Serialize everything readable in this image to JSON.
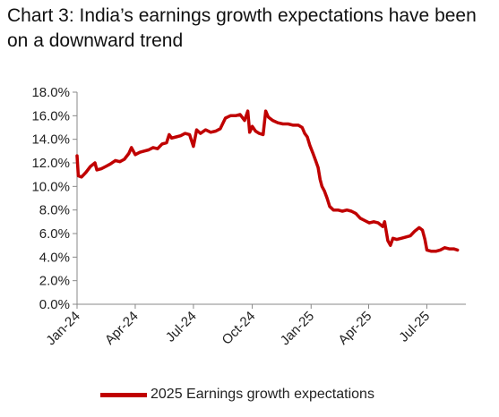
{
  "chart_data": {
    "type": "line",
    "title": "Chart 3: India’s earnings growth expectations have been on a downward trend",
    "xlabel": "",
    "ylabel": "",
    "ylim": [
      0,
      18
    ],
    "yticks": [
      "0.0%",
      "2.0%",
      "4.0%",
      "6.0%",
      "8.0%",
      "10.0%",
      "12.0%",
      "14.0%",
      "16.0%",
      "18.0%"
    ],
    "xticks": [
      "Jan-24",
      "Apr-24",
      "Jul-24",
      "Oct-24",
      "Jan-25",
      "Apr-25",
      "Jul-25"
    ],
    "grid": false,
    "legend_position": "bottom",
    "series": [
      {
        "name": "2025 Earnings growth expectations",
        "color": "#c00000",
        "points": [
          [
            "2024-01-01",
            12.6
          ],
          [
            "2024-01-03",
            10.9
          ],
          [
            "2024-01-08",
            10.8
          ],
          [
            "2024-01-15",
            11.2
          ],
          [
            "2024-01-22",
            11.7
          ],
          [
            "2024-01-29",
            12.0
          ],
          [
            "2024-02-01",
            11.4
          ],
          [
            "2024-02-08",
            11.5
          ],
          [
            "2024-02-15",
            11.7
          ],
          [
            "2024-02-22",
            11.9
          ],
          [
            "2024-03-01",
            12.2
          ],
          [
            "2024-03-08",
            12.1
          ],
          [
            "2024-03-15",
            12.3
          ],
          [
            "2024-03-22",
            12.8
          ],
          [
            "2024-03-26",
            13.3
          ],
          [
            "2024-04-01",
            12.7
          ],
          [
            "2024-04-08",
            12.9
          ],
          [
            "2024-04-15",
            13.0
          ],
          [
            "2024-04-22",
            13.1
          ],
          [
            "2024-04-29",
            13.3
          ],
          [
            "2024-05-06",
            13.2
          ],
          [
            "2024-05-13",
            13.6
          ],
          [
            "2024-05-20",
            13.7
          ],
          [
            "2024-05-24",
            14.4
          ],
          [
            "2024-05-28",
            14.1
          ],
          [
            "2024-06-04",
            14.2
          ],
          [
            "2024-06-11",
            14.3
          ],
          [
            "2024-06-18",
            14.5
          ],
          [
            "2024-06-25",
            14.4
          ],
          [
            "2024-07-01",
            13.4
          ],
          [
            "2024-07-06",
            14.8
          ],
          [
            "2024-07-12",
            14.5
          ],
          [
            "2024-07-20",
            14.8
          ],
          [
            "2024-07-28",
            14.6
          ],
          [
            "2024-08-05",
            14.7
          ],
          [
            "2024-08-12",
            14.9
          ],
          [
            "2024-08-20",
            15.8
          ],
          [
            "2024-08-28",
            16.0
          ],
          [
            "2024-09-05",
            16.0
          ],
          [
            "2024-09-12",
            16.1
          ],
          [
            "2024-09-19",
            15.6
          ],
          [
            "2024-09-24",
            16.4
          ],
          [
            "2024-09-27",
            14.6
          ],
          [
            "2024-10-01",
            15.1
          ],
          [
            "2024-10-06",
            14.7
          ],
          [
            "2024-10-12",
            14.5
          ],
          [
            "2024-10-18",
            14.4
          ],
          [
            "2024-10-22",
            16.4
          ],
          [
            "2024-10-26",
            15.9
          ],
          [
            "2024-11-02",
            15.6
          ],
          [
            "2024-11-10",
            15.4
          ],
          [
            "2024-11-18",
            15.3
          ],
          [
            "2024-11-26",
            15.3
          ],
          [
            "2024-12-04",
            15.2
          ],
          [
            "2024-12-12",
            15.2
          ],
          [
            "2024-12-18",
            15.0
          ],
          [
            "2024-12-22",
            14.5
          ],
          [
            "2024-12-26",
            14.2
          ],
          [
            "2024-12-30",
            13.5
          ],
          [
            "2025-01-04",
            12.8
          ],
          [
            "2025-01-08",
            12.2
          ],
          [
            "2025-01-12",
            11.6
          ],
          [
            "2025-01-15",
            10.6
          ],
          [
            "2025-01-18",
            10.0
          ],
          [
            "2025-01-22",
            9.6
          ],
          [
            "2025-01-26",
            9.0
          ],
          [
            "2025-01-30",
            8.3
          ],
          [
            "2025-02-05",
            8.0
          ],
          [
            "2025-02-12",
            8.0
          ],
          [
            "2025-02-19",
            7.9
          ],
          [
            "2025-02-26",
            8.0
          ],
          [
            "2025-03-05",
            7.9
          ],
          [
            "2025-03-12",
            7.7
          ],
          [
            "2025-03-19",
            7.3
          ],
          [
            "2025-03-26",
            7.1
          ],
          [
            "2025-04-02",
            6.9
          ],
          [
            "2025-04-09",
            7.0
          ],
          [
            "2025-04-16",
            6.9
          ],
          [
            "2025-04-23",
            6.6
          ],
          [
            "2025-04-26",
            7.0
          ],
          [
            "2025-05-01",
            5.4
          ],
          [
            "2025-05-05",
            5.0
          ],
          [
            "2025-05-09",
            5.6
          ],
          [
            "2025-05-15",
            5.5
          ],
          [
            "2025-05-22",
            5.6
          ],
          [
            "2025-05-29",
            5.7
          ],
          [
            "2025-06-05",
            5.8
          ],
          [
            "2025-06-12",
            6.2
          ],
          [
            "2025-06-19",
            6.5
          ],
          [
            "2025-06-24",
            6.3
          ],
          [
            "2025-06-28",
            5.5
          ],
          [
            "2025-07-01",
            4.6
          ],
          [
            "2025-07-08",
            4.5
          ],
          [
            "2025-07-15",
            4.5
          ],
          [
            "2025-07-22",
            4.6
          ],
          [
            "2025-07-29",
            4.8
          ],
          [
            "2025-08-05",
            4.7
          ],
          [
            "2025-08-12",
            4.7
          ],
          [
            "2025-08-18",
            4.6
          ]
        ]
      }
    ]
  }
}
